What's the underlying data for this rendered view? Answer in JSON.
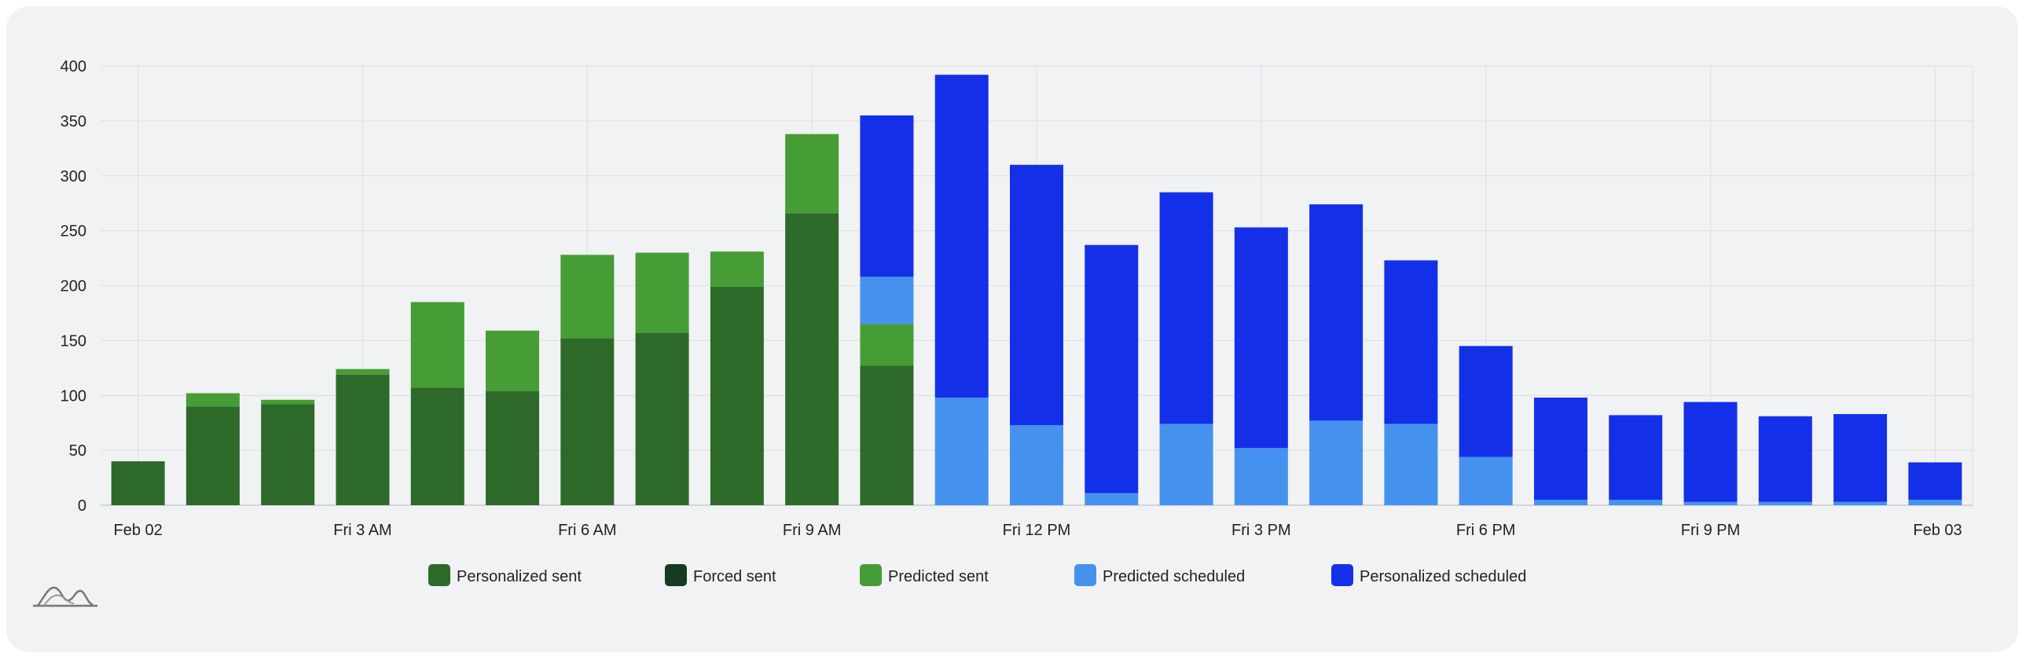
{
  "colors": {
    "personalized_sent": "#2d6a2a",
    "forced_sent": "#163b20",
    "predicted_sent": "#469c35",
    "predicted_scheduled": "#4592ee",
    "personalized_scheduled": "#1330e8",
    "grid": "#dcdde2",
    "card": "#f1f2f4"
  },
  "chart_data": {
    "type": "bar",
    "stacked": true,
    "ylim": [
      0,
      400
    ],
    "yticks": [
      0,
      50,
      100,
      150,
      200,
      250,
      300,
      350,
      400
    ],
    "x_tick_labels": [
      "Feb 02",
      "Fri 3 AM",
      "Fri 6 AM",
      "Fri 9 AM",
      "Fri 12 PM",
      "Fri 3 PM",
      "Fri 6 PM",
      "Fri 9 PM",
      "Feb 03"
    ],
    "grid": true,
    "legend_position": "bottom",
    "series": [
      {
        "name": "Personalized sent",
        "key": "personalized_sent",
        "values": [
          40,
          90,
          92,
          119,
          107,
          104,
          152,
          157,
          199,
          266,
          127,
          0,
          0,
          0,
          0,
          0,
          0,
          0,
          0,
          0,
          0,
          0,
          0,
          0,
          0
        ]
      },
      {
        "name": "Forced sent",
        "key": "forced_sent",
        "values": [
          0,
          0,
          0,
          0,
          0,
          0,
          0,
          0,
          0,
          0,
          0,
          0,
          0,
          0,
          0,
          0,
          0,
          0,
          0,
          0,
          0,
          0,
          0,
          0,
          0
        ]
      },
      {
        "name": "Predicted sent",
        "key": "predicted_sent",
        "values": [
          0,
          12,
          4,
          5,
          78,
          55,
          76,
          73,
          32,
          72,
          38,
          0,
          0,
          0,
          0,
          0,
          0,
          0,
          0,
          0,
          0,
          0,
          0,
          0,
          0
        ]
      },
      {
        "name": "Predicted scheduled",
        "key": "predicted_scheduled",
        "values": [
          0,
          0,
          0,
          0,
          0,
          0,
          0,
          0,
          0,
          0,
          43,
          98,
          73,
          11,
          74,
          52,
          77,
          74,
          44,
          5,
          5,
          3,
          3,
          3,
          5
        ]
      },
      {
        "name": "Personalized scheduled",
        "key": "personalized_scheduled",
        "values": [
          0,
          0,
          0,
          0,
          0,
          0,
          0,
          0,
          0,
          0,
          147,
          294,
          237,
          226,
          211,
          201,
          197,
          149,
          101,
          93,
          77,
          91,
          78,
          80,
          34
        ]
      }
    ]
  }
}
